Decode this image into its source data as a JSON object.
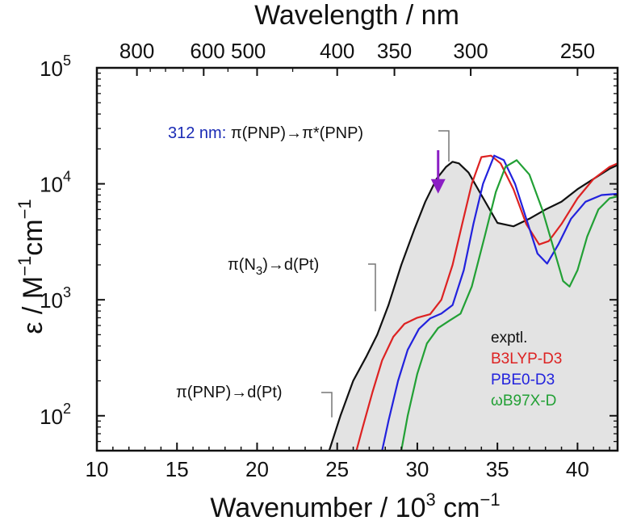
{
  "chart_data": {
    "type": "line",
    "xlabel": "Wavenumber / 10",
    "xlabel_sup": "3",
    "xlabel_unit": " cm",
    "xlabel_unit_sup": "−1",
    "top_xlabel": "Wavelength / nm",
    "ylabel_pre": "ε / M",
    "ylabel_sup1": "−1",
    "ylabel_mid": "cm",
    "ylabel_sup2": "−1",
    "xlim": [
      10,
      42.5
    ],
    "ylim": [
      50,
      100000
    ],
    "yscale": "log",
    "grid": false,
    "x_ticks": [
      10,
      15,
      20,
      25,
      30,
      35,
      40
    ],
    "x_tick_labels": [
      "10",
      "15",
      "20",
      "25",
      "30",
      "35",
      "40"
    ],
    "y_ticks": [
      100,
      1000,
      10000,
      100000
    ],
    "y_tick_base": "10",
    "y_tick_exps": [
      "2",
      "3",
      "4",
      "5"
    ],
    "top_ticks_nm": [
      800,
      600,
      500,
      400,
      350,
      300,
      250
    ],
    "top_tick_labels": [
      "800",
      "600 500",
      "400",
      "350",
      "300",
      "250"
    ],
    "top_tick_label_nm": [
      800,
      550,
      400,
      350,
      300,
      250
    ],
    "series": [
      {
        "name": "exptl.",
        "color": "#111111",
        "fill": "#e3e3e3",
        "x": [
          24.5,
          25.2,
          26,
          26.8,
          27.5,
          28.2,
          29,
          29.8,
          30.5,
          31.2,
          31.8,
          32.2,
          32.6,
          33.2,
          34,
          35,
          36,
          37,
          38,
          39,
          40,
          41,
          42,
          42.5
        ],
        "y": [
          50,
          100,
          200,
          320,
          500,
          900,
          2000,
          4000,
          7000,
          11000,
          14000,
          15500,
          15000,
          12500,
          8000,
          4600,
          4300,
          5000,
          6000,
          7000,
          9000,
          11000,
          13500,
          14500
        ]
      },
      {
        "name": "B3LYP-D3",
        "color": "#dd2222",
        "x": [
          26.2,
          26.6,
          27.2,
          27.8,
          28.5,
          29.2,
          30,
          30.8,
          31.5,
          32.2,
          32.8,
          33.4,
          34,
          34.6,
          35.2,
          36,
          36.8,
          37.6,
          38.2,
          39,
          40,
          41,
          42,
          42.5
        ],
        "y": [
          50,
          80,
          160,
          300,
          480,
          620,
          700,
          750,
          1000,
          2000,
          4500,
          10000,
          17000,
          17500,
          15000,
          9000,
          4500,
          3000,
          3200,
          4500,
          7500,
          11000,
          14000,
          15000
        ]
      },
      {
        "name": "PBE0-D3",
        "color": "#2222dd",
        "x": [
          27.8,
          28.2,
          28.8,
          29.4,
          30.1,
          30.8,
          31.5,
          32.2,
          32.9,
          33.5,
          34.1,
          34.8,
          35.4,
          36.1,
          36.8,
          37.5,
          38.1,
          38.8,
          39.6,
          40.5,
          41.5,
          42.5
        ],
        "y": [
          50,
          90,
          200,
          370,
          560,
          690,
          760,
          900,
          1800,
          4500,
          10000,
          17500,
          16000,
          10000,
          5000,
          2500,
          2050,
          3000,
          5000,
          7000,
          8000,
          8200
        ]
      },
      {
        "name": "ωB97X-D",
        "color": "#22a035",
        "x": [
          29,
          29.4,
          30,
          30.6,
          31.3,
          32,
          32.7,
          33.4,
          34.2,
          34.9,
          35.5,
          36.2,
          37,
          37.8,
          38.5,
          39.1,
          39.5,
          40,
          40.6,
          41.3,
          42,
          42.5
        ],
        "y": [
          50,
          100,
          230,
          420,
          570,
          660,
          760,
          1300,
          3500,
          8500,
          14000,
          16000,
          12000,
          6000,
          2800,
          1450,
          1300,
          1800,
          3500,
          6000,
          7500,
          7800
        ]
      }
    ],
    "annotations": [
      {
        "label_colored": "312 nm: ",
        "label": "π(PNP)→π*(PNP)",
        "color": "#1a2bb5",
        "arrow_color": "#8b1fc4",
        "arrow_x": 31.3,
        "target_y": 8500
      },
      {
        "label": "π(N",
        "sub": "3",
        "label_rest": ")→d(Pt)",
        "target_x": 27.5,
        "target_y": 700
      },
      {
        "label": "π(PNP)→d(Pt)",
        "target_x": 24.6,
        "target_y": 100
      }
    ],
    "legend_position": "bottom-right"
  }
}
